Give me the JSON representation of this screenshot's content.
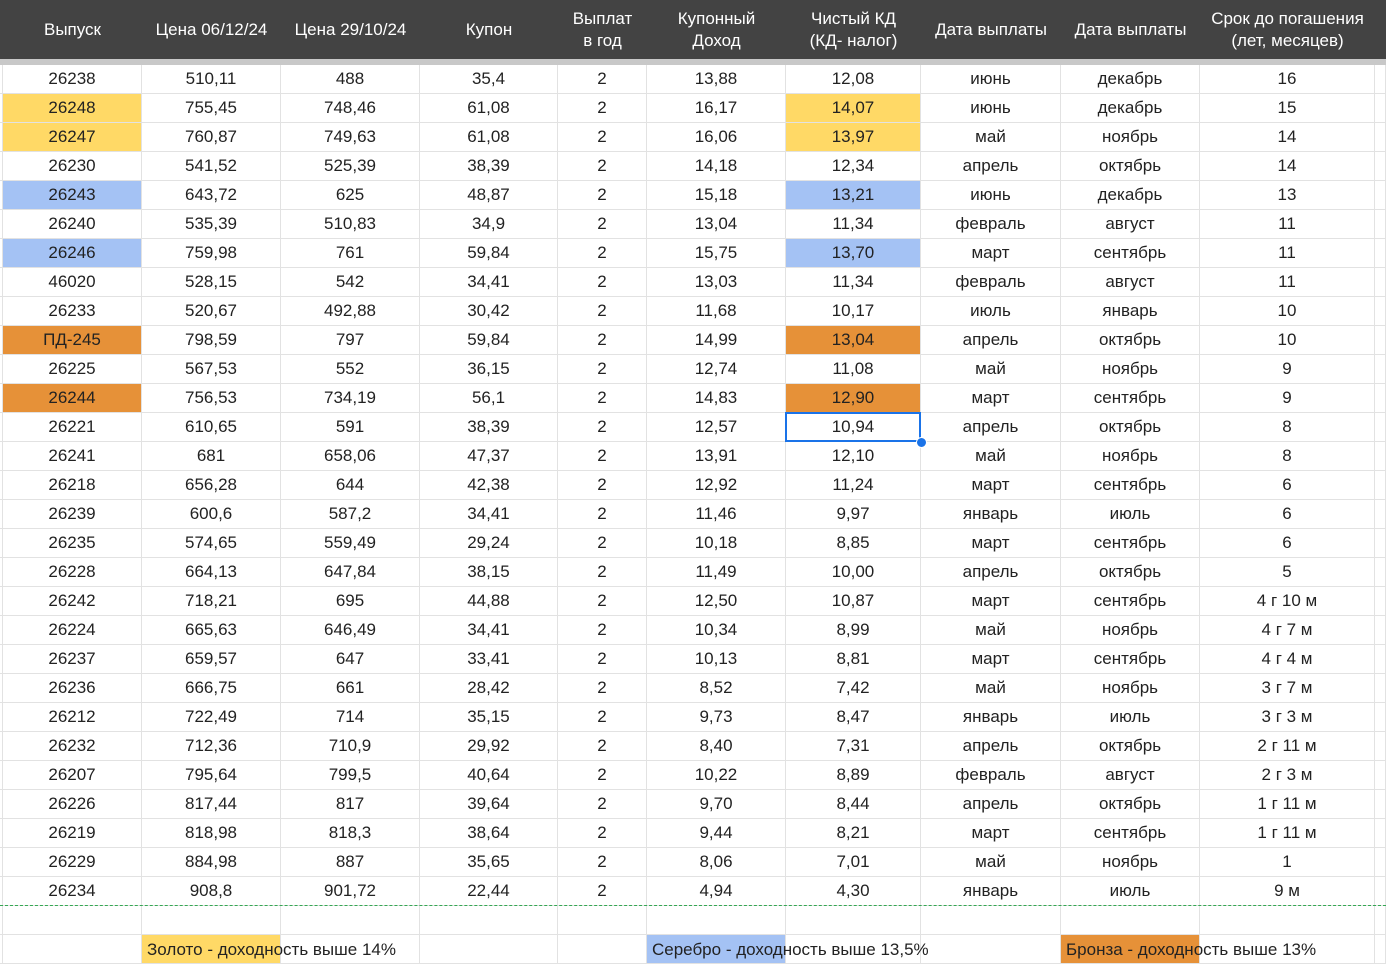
{
  "table": {
    "header": [
      [
        "Выпуск"
      ],
      [
        "Цена 06/12/24"
      ],
      [
        "Цена 29/10/24"
      ],
      [
        "Купон"
      ],
      [
        "Выплат",
        "в год"
      ],
      [
        "Купонный",
        "Доход"
      ],
      [
        "Чистый КД",
        "(КД- налог)"
      ],
      [
        "Дата выплаты"
      ],
      [
        "Дата выплаты"
      ],
      [
        "Срок до погашения",
        "(лет, месяцев)"
      ]
    ],
    "highlight_colors": {
      "gold": "#ffd966",
      "silver": "#a4c2f4",
      "bronze": "#e69138"
    },
    "rows": [
      {
        "cells": [
          "26238",
          "510,11",
          "488",
          "35,4",
          "2",
          "13,88",
          "12,08",
          "июнь",
          "декабрь",
          "16"
        ]
      },
      {
        "cells": [
          "26248",
          "755,45",
          "748,46",
          "61,08",
          "2",
          "16,17",
          "14,07",
          "июнь",
          "декабрь",
          "15"
        ],
        "highlight": "gold"
      },
      {
        "cells": [
          "26247",
          "760,87",
          "749,63",
          "61,08",
          "2",
          "16,06",
          "13,97",
          "май",
          "ноябрь",
          "14"
        ],
        "highlight": "gold"
      },
      {
        "cells": [
          "26230",
          "541,52",
          "525,39",
          "38,39",
          "2",
          "14,18",
          "12,34",
          "апрель",
          "октябрь",
          "14"
        ]
      },
      {
        "cells": [
          "26243",
          "643,72",
          "625",
          "48,87",
          "2",
          "15,18",
          "13,21",
          "июнь",
          "декабрь",
          "13"
        ],
        "highlight": "silver"
      },
      {
        "cells": [
          "26240",
          "535,39",
          "510,83",
          "34,9",
          "2",
          "13,04",
          "11,34",
          "февраль",
          "август",
          "11"
        ]
      },
      {
        "cells": [
          "26246",
          "759,98",
          "761",
          "59,84",
          "2",
          "15,75",
          "13,70",
          "март",
          "сентябрь",
          "11"
        ],
        "highlight": "silver"
      },
      {
        "cells": [
          "46020",
          "528,15",
          "542",
          "34,41",
          "2",
          "13,03",
          "11,34",
          "февраль",
          "август",
          "11"
        ]
      },
      {
        "cells": [
          "26233",
          "520,67",
          "492,88",
          "30,42",
          "2",
          "11,68",
          "10,17",
          "июль",
          "январь",
          "10"
        ]
      },
      {
        "cells": [
          "ПД-245",
          "798,59",
          "797",
          "59,84",
          "2",
          "14,99",
          "13,04",
          "апрель",
          "октябрь",
          "10"
        ],
        "highlight": "bronze"
      },
      {
        "cells": [
          "26225",
          "567,53",
          "552",
          "36,15",
          "2",
          "12,74",
          "11,08",
          "май",
          "ноябрь",
          "9"
        ]
      },
      {
        "cells": [
          "26244",
          "756,53",
          "734,19",
          "56,1",
          "2",
          "14,83",
          "12,90",
          "март",
          "сентябрь",
          "9"
        ],
        "highlight": "bronze"
      },
      {
        "cells": [
          "26221",
          "610,65",
          "591",
          "38,39",
          "2",
          "12,57",
          "10,94",
          "апрель",
          "октябрь",
          "8"
        ]
      },
      {
        "cells": [
          "26241",
          "681",
          "658,06",
          "47,37",
          "2",
          "13,91",
          "12,10",
          "май",
          "ноябрь",
          "8"
        ]
      },
      {
        "cells": [
          "26218",
          "656,28",
          "644",
          "42,38",
          "2",
          "12,92",
          "11,24",
          "март",
          "сентябрь",
          "6"
        ]
      },
      {
        "cells": [
          "26239",
          "600,6",
          "587,2",
          "34,41",
          "2",
          "11,46",
          "9,97",
          "январь",
          "июль",
          "6"
        ]
      },
      {
        "cells": [
          "26235",
          "574,65",
          "559,49",
          "29,24",
          "2",
          "10,18",
          "8,85",
          "март",
          "сентябрь",
          "6"
        ]
      },
      {
        "cells": [
          "26228",
          "664,13",
          "647,84",
          "38,15",
          "2",
          "11,49",
          "10,00",
          "апрель",
          "октябрь",
          "5"
        ]
      },
      {
        "cells": [
          "26242",
          "718,21",
          "695",
          "44,88",
          "2",
          "12,50",
          "10,87",
          "март",
          "сентябрь",
          "4 г 10 м"
        ]
      },
      {
        "cells": [
          "26224",
          "665,63",
          "646,49",
          "34,41",
          "2",
          "10,34",
          "8,99",
          "май",
          "ноябрь",
          "4 г 7 м"
        ]
      },
      {
        "cells": [
          "26237",
          "659,57",
          "647",
          "33,41",
          "2",
          "10,13",
          "8,81",
          "март",
          "сентябрь",
          "4 г 4 м"
        ]
      },
      {
        "cells": [
          "26236",
          "666,75",
          "661",
          "28,42",
          "2",
          "8,52",
          "7,42",
          "май",
          "ноябрь",
          "3 г 7 м"
        ]
      },
      {
        "cells": [
          "26212",
          "722,49",
          "714",
          "35,15",
          "2",
          "9,73",
          "8,47",
          "январь",
          "июль",
          "3 г 3 м"
        ]
      },
      {
        "cells": [
          "26232",
          "712,36",
          "710,9",
          "29,92",
          "2",
          "8,40",
          "7,31",
          "апрель",
          "октябрь",
          "2 г 11 м"
        ]
      },
      {
        "cells": [
          "26207",
          "795,64",
          "799,5",
          "40,64",
          "2",
          "10,22",
          "8,89",
          "февраль",
          "август",
          "2 г 3 м"
        ]
      },
      {
        "cells": [
          "26226",
          "817,44",
          "817",
          "39,64",
          "2",
          "9,70",
          "8,44",
          "апрель",
          "октябрь",
          "1 г 11 м"
        ]
      },
      {
        "cells": [
          "26219",
          "818,98",
          "818,3",
          "38,64",
          "2",
          "9,44",
          "8,21",
          "март",
          "сентябрь",
          "1 г 11 м"
        ]
      },
      {
        "cells": [
          "26229",
          "884,98",
          "887",
          "35,65",
          "2",
          "8,06",
          "7,01",
          "май",
          "ноябрь",
          "1"
        ]
      },
      {
        "cells": [
          "26234",
          "908,8",
          "901,72",
          "22,44",
          "2",
          "4,94",
          "4,30",
          "январь",
          "июль",
          "9 м"
        ]
      }
    ],
    "selected_cell": {
      "row": 12,
      "column": 6
    }
  },
  "legend": [
    {
      "text": "Золото - доходность выше 14%",
      "highlight": "gold"
    },
    {
      "text": "Серебро - доходность выше 13,5%",
      "highlight": "silver"
    },
    {
      "text": "Бронза - доходность выше 13%",
      "highlight": "bronze"
    }
  ]
}
